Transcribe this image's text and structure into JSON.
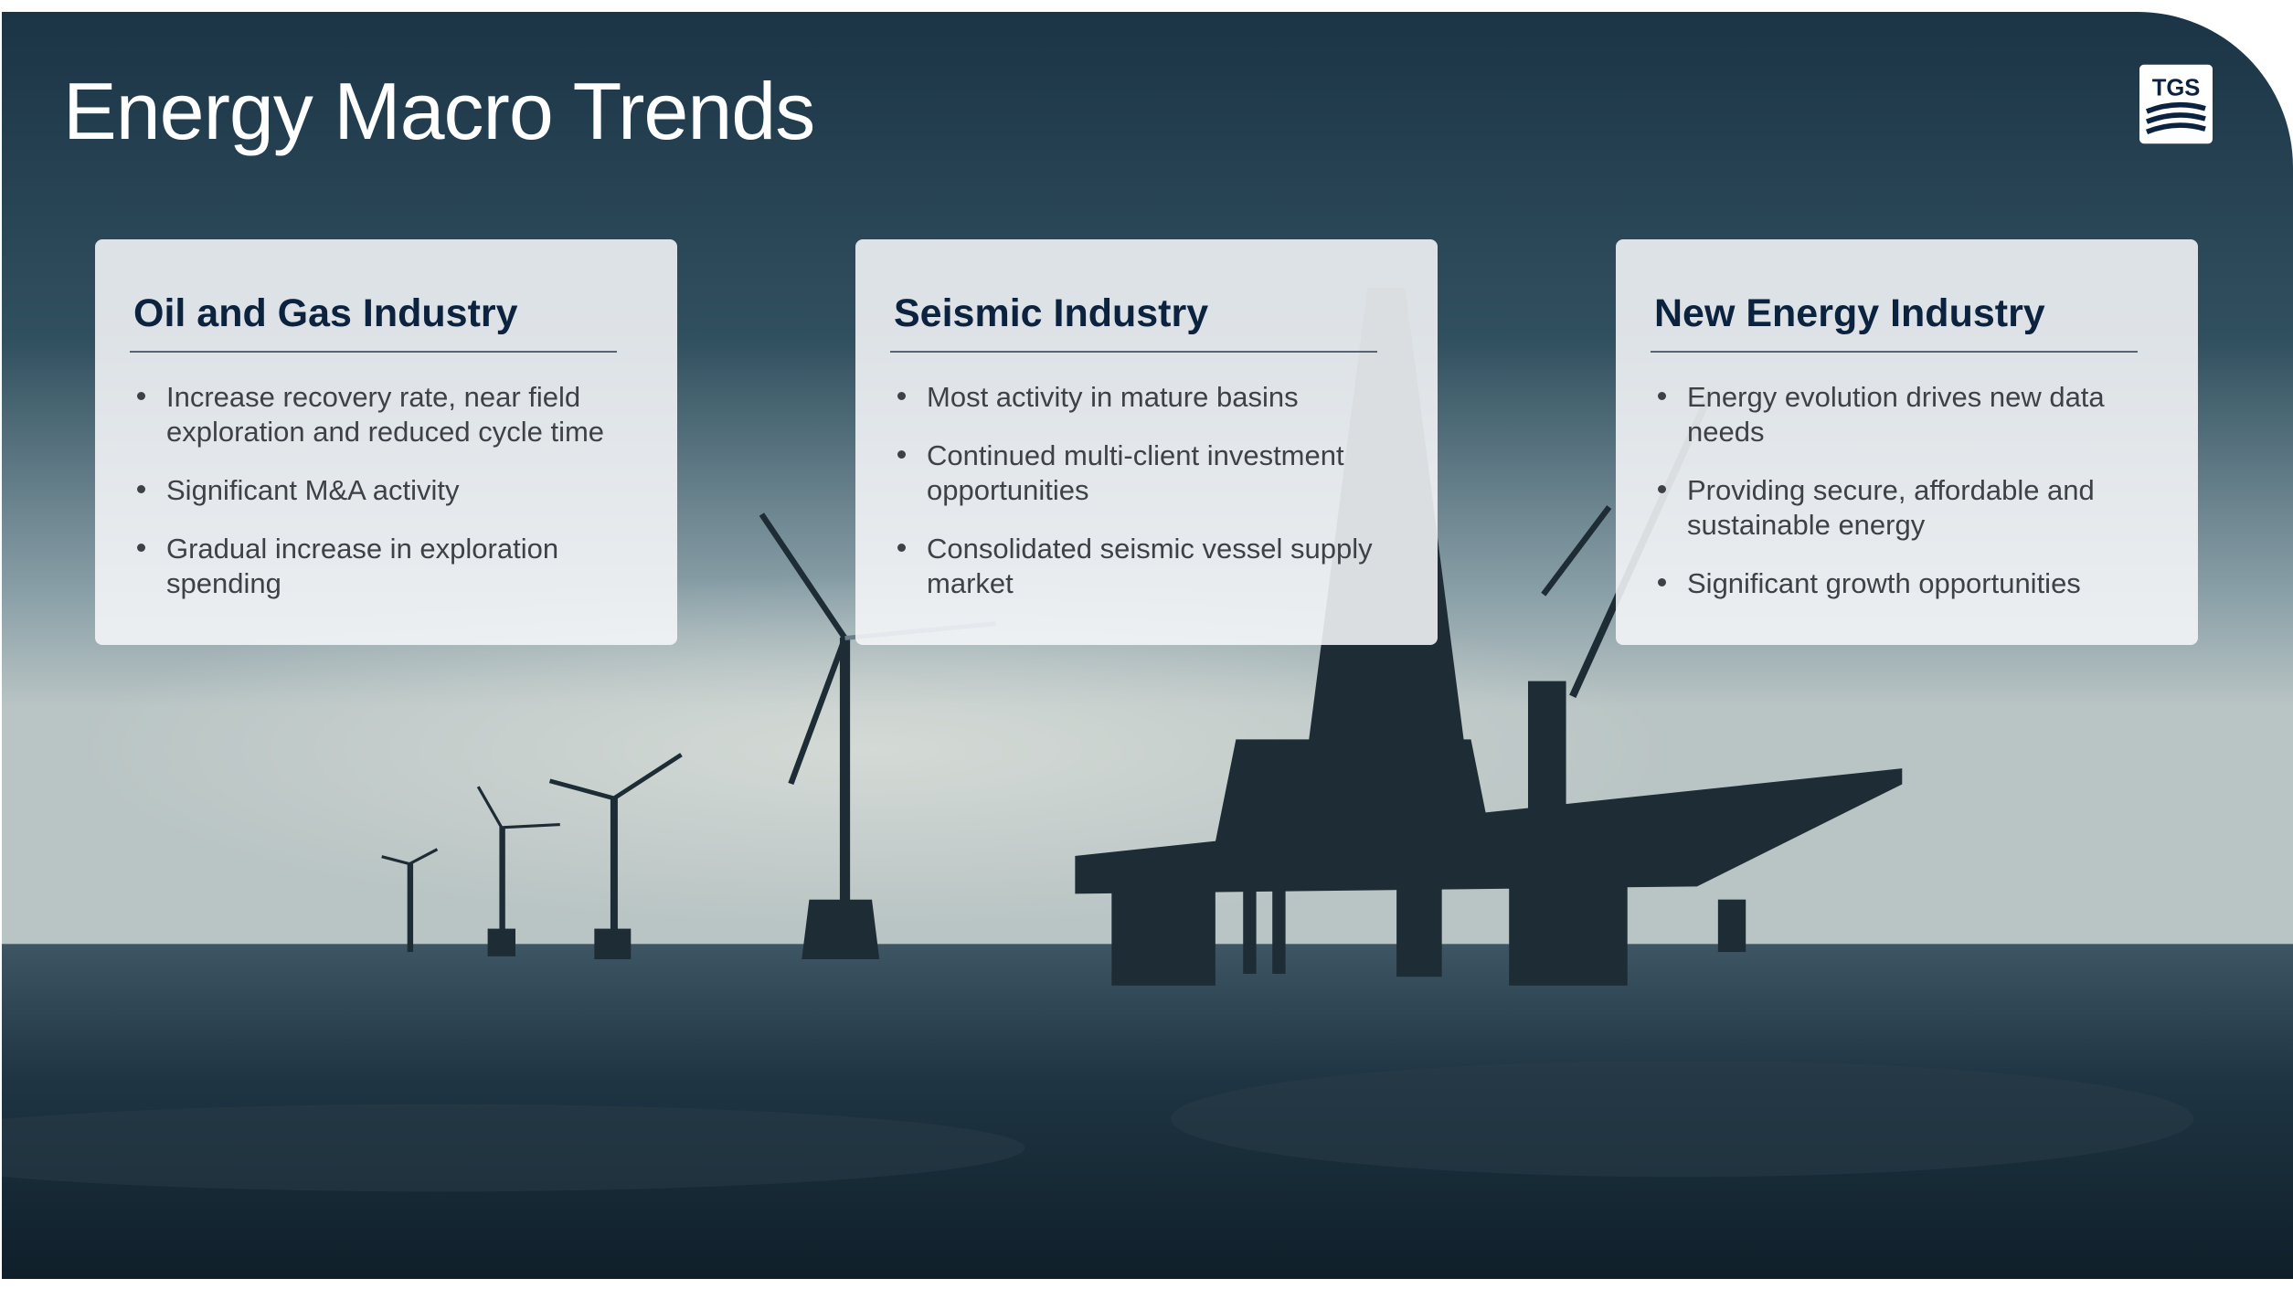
{
  "header": {
    "title": "Energy Macro Trends",
    "logo": "TGS"
  },
  "cards": [
    {
      "heading": "Oil and Gas Industry",
      "bullets": [
        "Increase recovery rate, near field exploration and reduced cycle time",
        "Significant M&A activity",
        "Gradual increase in exploration spending"
      ]
    },
    {
      "heading": "Seismic Industry",
      "bullets": [
        "Most activity in mature basins",
        "Continued multi-client investment opportunities",
        "Consolidated seismic vessel supply market"
      ]
    },
    {
      "heading": "New Energy Industry",
      "bullets": [
        "Energy evolution drives new data needs",
        "Providing secure, affordable and sustainable energy",
        "Significant growth opportunities"
      ]
    }
  ]
}
